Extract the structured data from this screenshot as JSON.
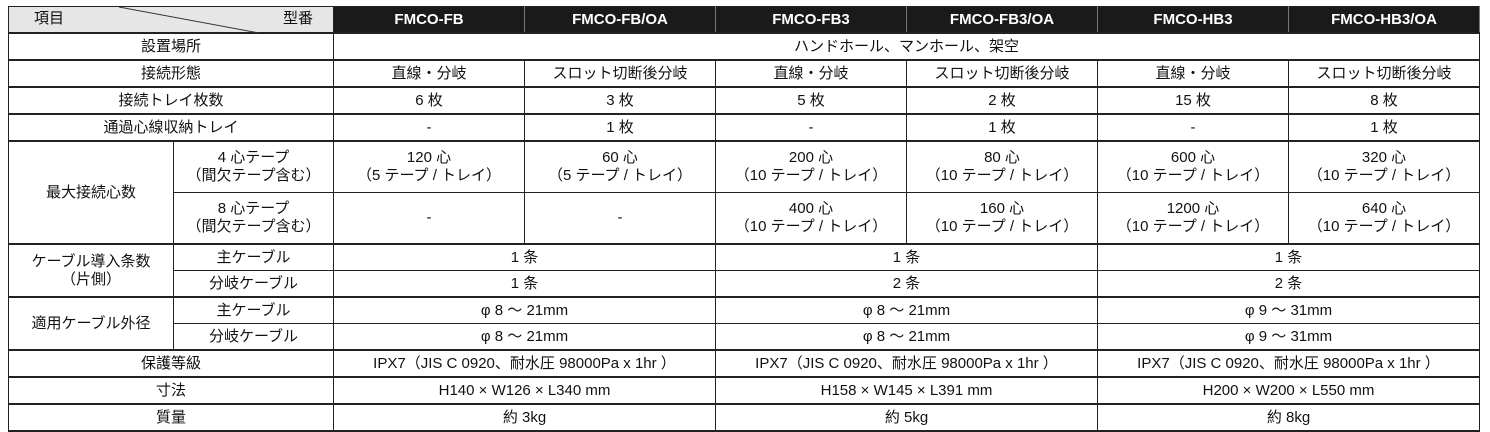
{
  "header": {
    "item": "項目",
    "model": "型番",
    "models": [
      "FMCO-FB",
      "FMCO-FB/OA",
      "FMCO-FB3",
      "FMCO-FB3/OA",
      "FMCO-HB3",
      "FMCO-HB3/OA"
    ]
  },
  "rows": {
    "location": {
      "label": "設置場所",
      "value": "ハンドホール、マンホール、架空"
    },
    "connection": {
      "label": "接続形態",
      "values": [
        "直線・分岐",
        "スロット切断後分岐",
        "直線・分岐",
        "スロット切断後分岐",
        "直線・分岐",
        "スロット切断後分岐"
      ]
    },
    "trays": {
      "label": "接続トレイ枚数",
      "values": [
        "6 枚",
        "3 枚",
        "5 枚",
        "2 枚",
        "15 枚",
        "8 枚"
      ]
    },
    "pass_tray": {
      "label": "通過心線収納トレイ",
      "values": [
        "-",
        "1 枚",
        "-",
        "1 枚",
        "-",
        "1 枚"
      ]
    },
    "max_cores": {
      "label": "最大接続心数",
      "tape4": {
        "label1": "4 心テープ",
        "label2": "（間欠テープ含む）",
        "values": [
          [
            "120 心",
            "（5 テープ / トレイ）"
          ],
          [
            "60 心",
            "（5 テープ / トレイ）"
          ],
          [
            "200 心",
            "（10 テープ / トレイ）"
          ],
          [
            "80 心",
            "（10 テープ / トレイ）"
          ],
          [
            "600 心",
            "（10 テープ / トレイ）"
          ],
          [
            "320 心",
            "（10 テープ / トレイ）"
          ]
        ]
      },
      "tape8": {
        "label1": "8 心テープ",
        "label2": "（間欠テープ含む）",
        "values": [
          [
            "-",
            ""
          ],
          [
            "-",
            ""
          ],
          [
            "400 心",
            "（10 テープ / トレイ）"
          ],
          [
            "160 心",
            "（10 テープ / トレイ）"
          ],
          [
            "1200 心",
            "（10 テープ / トレイ）"
          ],
          [
            "640 心",
            "（10 テープ / トレイ）"
          ]
        ]
      }
    },
    "cable_count": {
      "label1": "ケーブル導入条数",
      "label2": "（片側）",
      "main_label": "主ケーブル",
      "branch_label": "分岐ケーブル",
      "main": [
        "1 条",
        "1 条",
        "1 条"
      ],
      "branch": [
        "1 条",
        "2 条",
        "2 条"
      ]
    },
    "cable_diameter": {
      "label": "適用ケーブル外径",
      "main_label": "主ケーブル",
      "branch_label": "分岐ケーブル",
      "main": [
        "φ 8 ～ 21mm",
        "φ 8 ～ 21mm",
        "φ 9 ～ 31mm"
      ],
      "branch": [
        "φ 8 ～ 21mm",
        "φ 8 ～ 21mm",
        "φ 9 ～ 31mm"
      ]
    },
    "protection": {
      "label": "保護等級",
      "values": [
        "IPX7（JIS C 0920、耐水圧 98000Pa x 1hr ）",
        "IPX7（JIS C 0920、耐水圧 98000Pa x 1hr ）",
        "IPX7（JIS C 0920、耐水圧 98000Pa x 1hr ）"
      ]
    },
    "dimensions": {
      "label": "寸法",
      "values": [
        "H140 × W126 × L340 mm",
        "H158 × W145 × L391 mm",
        "H200 × W200 × L550 mm"
      ]
    },
    "mass": {
      "label": "質量",
      "values": [
        "約 3kg",
        "約 5kg",
        "約 8kg"
      ]
    }
  }
}
